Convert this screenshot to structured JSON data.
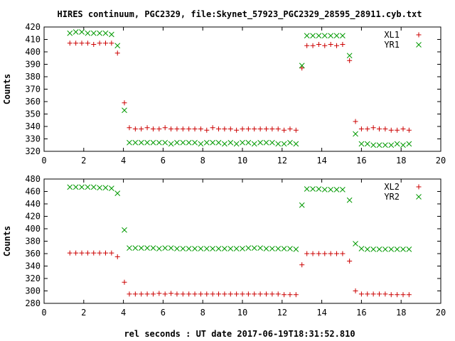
{
  "title": "HIRES continuum, PGC2329, file:Skynet_57923_PGC2329_28595_28911.cyb.txt",
  "xlabel": "rel seconds : UT date 2017-06-19T18:31:52.810",
  "colors": {
    "red": "#cc0000",
    "green": "#009900",
    "frame": "#000000"
  },
  "chart_data": [
    {
      "type": "scatter",
      "ylabel": "Counts",
      "xlim": [
        0,
        20
      ],
      "ylim": [
        320,
        420
      ],
      "xticks": [
        0,
        2,
        4,
        6,
        8,
        10,
        12,
        14,
        16,
        18,
        20
      ],
      "yticks": [
        320,
        330,
        340,
        350,
        360,
        370,
        380,
        390,
        400,
        410,
        420
      ],
      "legend_position": "top-right",
      "series": [
        {
          "name": "XL1",
          "marker": "plus",
          "color": "#cc0000",
          "x": [
            1.3,
            1.6,
            1.9,
            2.2,
            2.5,
            2.8,
            3.1,
            3.4,
            3.7,
            4.05,
            4.3,
            4.6,
            4.9,
            5.2,
            5.5,
            5.8,
            6.1,
            6.4,
            6.7,
            7.0,
            7.3,
            7.6,
            7.9,
            8.2,
            8.5,
            8.8,
            9.1,
            9.4,
            9.7,
            10.0,
            10.3,
            10.6,
            10.9,
            11.2,
            11.5,
            11.8,
            12.1,
            12.4,
            12.7,
            13.0,
            13.25,
            13.55,
            13.85,
            14.15,
            14.45,
            14.75,
            15.05,
            15.4,
            15.7,
            16.0,
            16.3,
            16.6,
            16.9,
            17.2,
            17.5,
            17.8,
            18.1,
            18.4
          ],
          "y": [
            407,
            407,
            407,
            407,
            406,
            407,
            407,
            407,
            399,
            359,
            339,
            338,
            338,
            339,
            338,
            338,
            339,
            338,
            338,
            338,
            338,
            338,
            338,
            337,
            339,
            338,
            338,
            338,
            337,
            338,
            338,
            338,
            338,
            338,
            338,
            338,
            337,
            338,
            337,
            387,
            405,
            405,
            406,
            405,
            406,
            405,
            406,
            393,
            344,
            338,
            338,
            339,
            338,
            338,
            337,
            337,
            338,
            337
          ]
        },
        {
          "name": "YR1",
          "marker": "cross",
          "color": "#009900",
          "x": [
            1.3,
            1.6,
            1.9,
            2.2,
            2.5,
            2.8,
            3.1,
            3.4,
            3.7,
            4.05,
            4.3,
            4.6,
            4.9,
            5.2,
            5.5,
            5.8,
            6.1,
            6.4,
            6.7,
            7.0,
            7.3,
            7.6,
            7.9,
            8.2,
            8.5,
            8.8,
            9.1,
            9.4,
            9.7,
            10.0,
            10.3,
            10.6,
            10.9,
            11.2,
            11.5,
            11.8,
            12.1,
            12.4,
            12.7,
            13.0,
            13.25,
            13.55,
            13.85,
            14.15,
            14.45,
            14.75,
            15.05,
            15.4,
            15.7,
            16.0,
            16.3,
            16.6,
            16.9,
            17.2,
            17.5,
            17.8,
            18.1,
            18.4
          ],
          "y": [
            415,
            416,
            416,
            415,
            415,
            415,
            415,
            414,
            405,
            353,
            327,
            327,
            327,
            327,
            327,
            327,
            327,
            326,
            327,
            327,
            327,
            327,
            326,
            327,
            327,
            327,
            326,
            327,
            326,
            327,
            327,
            326,
            327,
            327,
            327,
            326,
            326,
            327,
            326,
            389,
            413,
            413,
            413,
            413,
            413,
            413,
            413,
            397,
            334,
            326,
            326,
            325,
            325,
            325,
            325,
            326,
            325,
            326
          ]
        }
      ]
    },
    {
      "type": "scatter",
      "ylabel": "Counts",
      "xlim": [
        0,
        20
      ],
      "ylim": [
        280,
        480
      ],
      "xticks": [
        0,
        2,
        4,
        6,
        8,
        10,
        12,
        14,
        16,
        18,
        20
      ],
      "yticks": [
        280,
        300,
        320,
        340,
        360,
        380,
        400,
        420,
        440,
        460,
        480
      ],
      "legend_position": "top-right",
      "series": [
        {
          "name": "XL2",
          "marker": "plus",
          "color": "#cc0000",
          "x": [
            1.3,
            1.6,
            1.9,
            2.2,
            2.5,
            2.8,
            3.1,
            3.4,
            3.7,
            4.05,
            4.3,
            4.6,
            4.9,
            5.2,
            5.5,
            5.8,
            6.1,
            6.4,
            6.7,
            7.0,
            7.3,
            7.6,
            7.9,
            8.2,
            8.5,
            8.8,
            9.1,
            9.4,
            9.7,
            10.0,
            10.3,
            10.6,
            10.9,
            11.2,
            11.5,
            11.8,
            12.1,
            12.4,
            12.7,
            13.0,
            13.25,
            13.55,
            13.85,
            14.15,
            14.45,
            14.75,
            15.05,
            15.4,
            15.7,
            16.0,
            16.3,
            16.6,
            16.9,
            17.2,
            17.5,
            17.8,
            18.1,
            18.4
          ],
          "y": [
            361,
            361,
            361,
            361,
            361,
            361,
            361,
            361,
            355,
            314,
            295,
            295,
            295,
            295,
            295,
            296,
            295,
            296,
            295,
            295,
            295,
            295,
            295,
            295,
            295,
            295,
            295,
            295,
            295,
            295,
            295,
            295,
            295,
            295,
            295,
            295,
            294,
            294,
            294,
            342,
            360,
            360,
            360,
            360,
            360,
            360,
            360,
            348,
            300,
            295,
            295,
            295,
            295,
            295,
            294,
            294,
            294,
            294
          ]
        },
        {
          "name": "YR2",
          "marker": "cross",
          "color": "#009900",
          "x": [
            1.3,
            1.6,
            1.9,
            2.2,
            2.5,
            2.8,
            3.1,
            3.4,
            3.7,
            4.05,
            4.3,
            4.6,
            4.9,
            5.2,
            5.5,
            5.8,
            6.1,
            6.4,
            6.7,
            7.0,
            7.3,
            7.6,
            7.9,
            8.2,
            8.5,
            8.8,
            9.1,
            9.4,
            9.7,
            10.0,
            10.3,
            10.6,
            10.9,
            11.2,
            11.5,
            11.8,
            12.1,
            12.4,
            12.7,
            13.0,
            13.25,
            13.55,
            13.85,
            14.15,
            14.45,
            14.75,
            15.05,
            15.4,
            15.7,
            16.0,
            16.3,
            16.6,
            16.9,
            17.2,
            17.5,
            17.8,
            18.1,
            18.4
          ],
          "y": [
            467,
            467,
            467,
            467,
            467,
            466,
            466,
            465,
            457,
            398,
            369,
            369,
            369,
            369,
            369,
            368,
            369,
            369,
            368,
            368,
            368,
            368,
            368,
            368,
            368,
            368,
            368,
            368,
            368,
            368,
            369,
            369,
            369,
            368,
            368,
            368,
            368,
            368,
            367,
            438,
            464,
            464,
            464,
            463,
            463,
            463,
            463,
            446,
            376,
            368,
            367,
            367,
            367,
            367,
            367,
            367,
            367,
            367
          ]
        }
      ]
    }
  ]
}
